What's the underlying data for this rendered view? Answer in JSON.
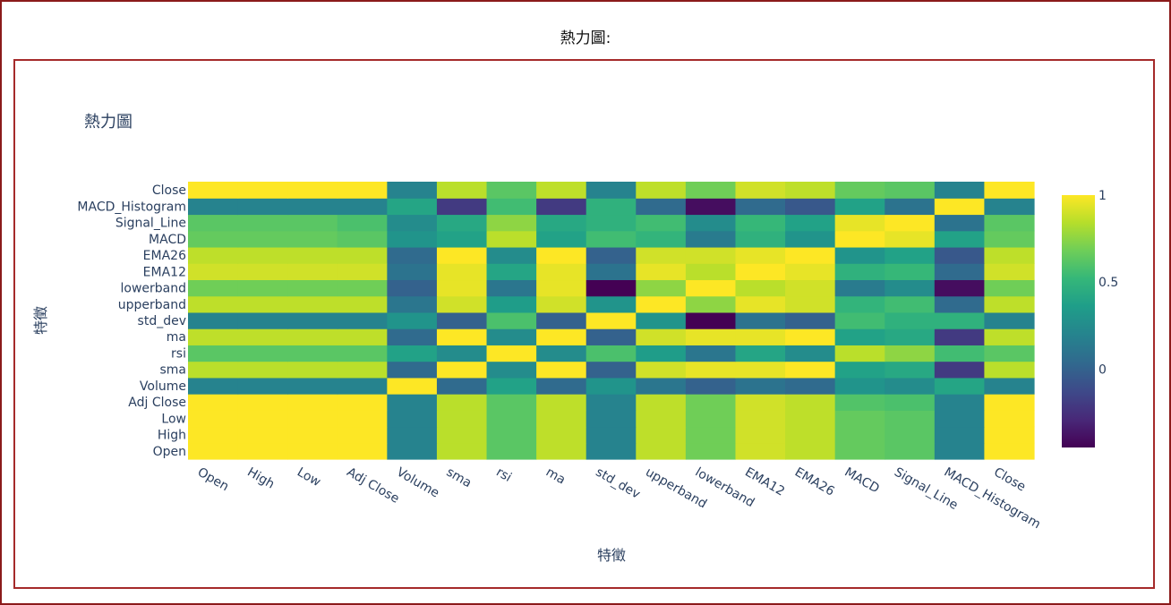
{
  "page": {
    "heading": "熱力圖:"
  },
  "chart_data": {
    "type": "heatmap",
    "title": "熱力圖",
    "xlabel": "特徵",
    "ylabel": "特徵",
    "x": [
      "Open",
      "High",
      "Low",
      "Adj Close",
      "Volume",
      "sma",
      "rsi",
      "ma",
      "std_dev",
      "upperband",
      "lowerband",
      "EMA12",
      "EMA26",
      "MACD",
      "Signal_Line",
      "MACD_Histogram",
      "Close"
    ],
    "y": [
      "Open",
      "High",
      "Low",
      "Adj Close",
      "Volume",
      "sma",
      "rsi",
      "ma",
      "std_dev",
      "upperband",
      "lowerband",
      "EMA12",
      "EMA26",
      "MACD",
      "Signal_Line",
      "MACD_Histogram",
      "Close"
    ],
    "z": [
      [
        1.0,
        1.0,
        1.0,
        1.0,
        0.2,
        0.85,
        0.62,
        0.86,
        0.2,
        0.86,
        0.68,
        0.9,
        0.86,
        0.65,
        0.62,
        0.2,
        1.0
      ],
      [
        1.0,
        1.0,
        1.0,
        1.0,
        0.2,
        0.85,
        0.62,
        0.86,
        0.2,
        0.86,
        0.68,
        0.9,
        0.86,
        0.65,
        0.62,
        0.2,
        1.0
      ],
      [
        1.0,
        1.0,
        1.0,
        1.0,
        0.2,
        0.85,
        0.62,
        0.86,
        0.2,
        0.86,
        0.68,
        0.9,
        0.86,
        0.65,
        0.62,
        0.2,
        1.0
      ],
      [
        1.0,
        1.0,
        1.0,
        1.0,
        0.2,
        0.85,
        0.62,
        0.86,
        0.2,
        0.86,
        0.68,
        0.9,
        0.86,
        0.6,
        0.58,
        0.2,
        1.0
      ],
      [
        0.2,
        0.2,
        0.2,
        0.2,
        1.0,
        0.05,
        0.38,
        0.05,
        0.3,
        0.12,
        0.0,
        0.1,
        0.05,
        0.3,
        0.25,
        0.4,
        0.2
      ],
      [
        0.85,
        0.85,
        0.85,
        0.85,
        0.05,
        1.0,
        0.25,
        1.0,
        0.0,
        0.9,
        0.95,
        0.95,
        1.0,
        0.38,
        0.42,
        -0.2,
        0.85
      ],
      [
        0.62,
        0.62,
        0.62,
        0.62,
        0.38,
        0.25,
        1.0,
        0.25,
        0.58,
        0.35,
        0.12,
        0.4,
        0.25,
        0.85,
        0.75,
        0.55,
        0.62
      ],
      [
        0.86,
        0.86,
        0.86,
        0.86,
        0.05,
        1.0,
        0.25,
        1.0,
        0.0,
        0.9,
        0.95,
        0.95,
        1.0,
        0.38,
        0.42,
        -0.2,
        0.86
      ],
      [
        0.2,
        0.2,
        0.2,
        0.2,
        0.3,
        0.0,
        0.58,
        0.0,
        1.0,
        0.3,
        -0.45,
        0.1,
        0.0,
        0.55,
        0.48,
        0.48,
        0.2
      ],
      [
        0.86,
        0.86,
        0.86,
        0.86,
        0.12,
        0.9,
        0.35,
        0.9,
        0.3,
        1.0,
        0.75,
        0.95,
        0.9,
        0.5,
        0.55,
        0.05,
        0.86
      ],
      [
        0.68,
        0.68,
        0.68,
        0.68,
        0.0,
        0.95,
        0.12,
        0.95,
        -0.45,
        0.75,
        1.0,
        0.85,
        0.9,
        0.15,
        0.25,
        -0.4,
        0.68
      ],
      [
        0.9,
        0.9,
        0.9,
        0.9,
        0.1,
        0.95,
        0.4,
        0.95,
        0.1,
        0.95,
        0.85,
        1.0,
        0.95,
        0.48,
        0.52,
        0.05,
        0.9
      ],
      [
        0.86,
        0.86,
        0.86,
        0.86,
        0.05,
        1.0,
        0.25,
        1.0,
        0.0,
        0.9,
        0.9,
        0.95,
        1.0,
        0.3,
        0.38,
        -0.05,
        0.86
      ],
      [
        0.65,
        0.65,
        0.65,
        0.62,
        0.3,
        0.38,
        0.85,
        0.38,
        0.55,
        0.5,
        0.15,
        0.48,
        0.3,
        1.0,
        0.95,
        0.38,
        0.65
      ],
      [
        0.62,
        0.62,
        0.62,
        0.58,
        0.25,
        0.42,
        0.75,
        0.42,
        0.48,
        0.55,
        0.25,
        0.52,
        0.38,
        0.95,
        1.0,
        0.1,
        0.62
      ],
      [
        0.2,
        0.2,
        0.2,
        0.2,
        0.4,
        -0.2,
        0.55,
        -0.2,
        0.48,
        0.05,
        -0.4,
        0.05,
        -0.05,
        0.38,
        0.1,
        1.0,
        0.2
      ],
      [
        1.0,
        1.0,
        1.0,
        1.0,
        0.2,
        0.85,
        0.62,
        0.86,
        0.2,
        0.86,
        0.68,
        0.9,
        0.86,
        0.65,
        0.62,
        0.2,
        1.0
      ]
    ],
    "zmin": -0.45,
    "zmax": 1.0,
    "colorscale": "viridis",
    "colorbar_ticks": [
      0,
      0.5,
      1
    ],
    "colorbar_tick_labels": [
      "0",
      "0.5",
      "1"
    ]
  }
}
